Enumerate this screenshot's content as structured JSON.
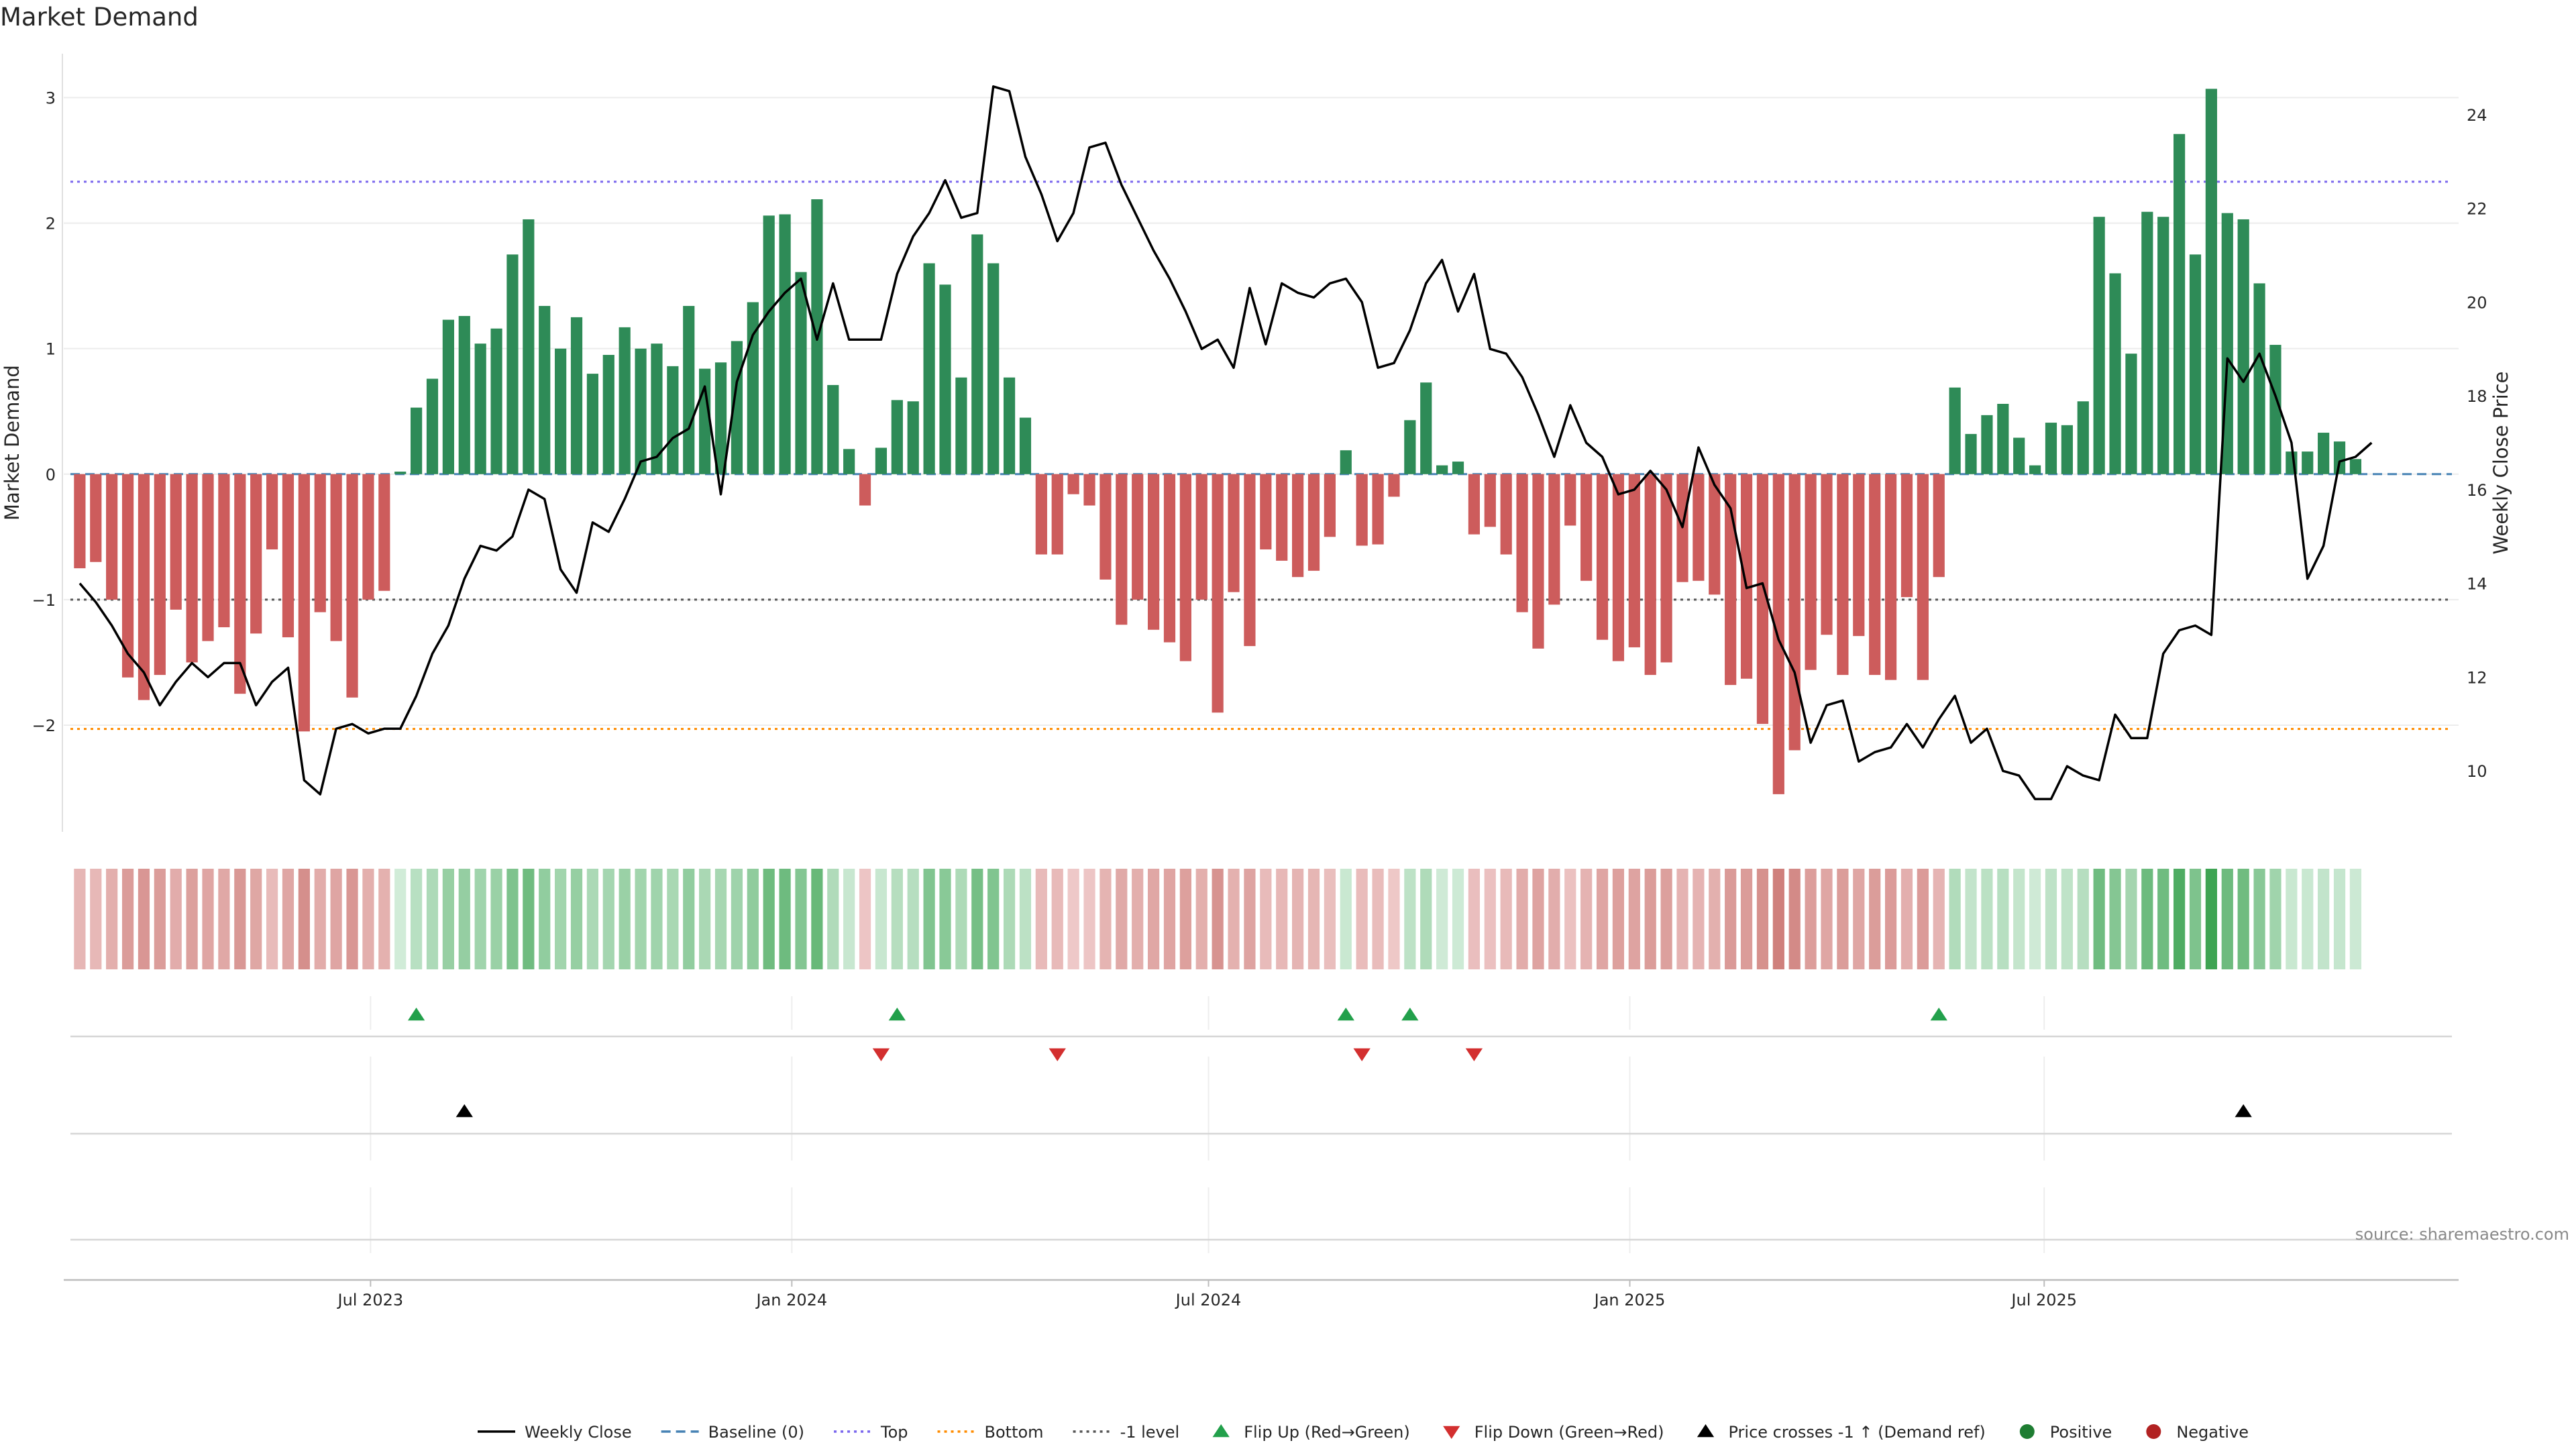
{
  "title": "Market Demand",
  "source": "source: sharemaestro.com",
  "chart_data": {
    "type": "bar",
    "title": "Market Demand",
    "ylabel": "Market Demand",
    "y2label": "Weekly Close Price",
    "ylim": [
      -2.85,
      3.35
    ],
    "y2lim": [
      8.7,
      25.3
    ],
    "y_ticks": [
      -2,
      -1,
      0,
      1,
      2,
      3
    ],
    "y_tick_labels": [
      "−2",
      "−1",
      "0",
      "1",
      "2",
      "3"
    ],
    "y2_ticks": [
      10,
      12,
      14,
      16,
      18,
      20,
      22,
      24
    ],
    "x_ticks": [
      {
        "date": "2023-07-01",
        "label": "Jul 2023"
      },
      {
        "date": "2024-01-01",
        "label": "Jan 2024"
      },
      {
        "date": "2024-07-01",
        "label": "Jul 2024"
      },
      {
        "date": "2025-01-01",
        "label": "Jan 2025"
      },
      {
        "date": "2025-07-01",
        "label": "Jul 2025"
      }
    ],
    "x_range": [
      "2023-02-17",
      "2025-12-29"
    ],
    "first_week": "2023-02-24",
    "week_step_days": 7,
    "reference_lines": {
      "top": 2.33,
      "bottom": -2.03,
      "minus_one_level": -1.0,
      "baseline": 0
    },
    "demand": [
      -0.75,
      -0.7,
      -1.0,
      -1.62,
      -1.8,
      -1.6,
      -1.08,
      -1.5,
      -1.33,
      -1.22,
      -1.75,
      -1.27,
      -0.6,
      -1.3,
      -2.05,
      -1.1,
      -1.33,
      -1.78,
      -1.0,
      -0.93,
      0.02,
      0.53,
      0.76,
      1.23,
      1.26,
      1.04,
      1.16,
      1.75,
      2.03,
      1.34,
      1.0,
      1.25,
      0.8,
      0.95,
      1.17,
      1.0,
      1.04,
      0.86,
      1.34,
      0.84,
      0.89,
      1.06,
      1.37,
      2.06,
      2.07,
      1.61,
      2.19,
      0.71,
      0.2,
      -0.25,
      0.21,
      0.59,
      0.58,
      1.68,
      1.51,
      0.77,
      1.91,
      1.68,
      0.77,
      0.45,
      -0.64,
      -0.64,
      -0.16,
      -0.25,
      -0.84,
      -1.2,
      -1.0,
      -1.24,
      -1.34,
      -1.49,
      -1.0,
      -1.9,
      -0.94,
      -1.37,
      -0.6,
      -0.69,
      -0.82,
      -0.77,
      -0.5,
      0.19,
      -0.57,
      -0.56,
      -0.18,
      0.43,
      0.73,
      0.07,
      0.1,
      -0.48,
      -0.42,
      -0.64,
      -1.1,
      -1.39,
      -1.04,
      -0.41,
      -0.85,
      -1.32,
      -1.49,
      -1.38,
      -1.6,
      -1.5,
      -0.86,
      -0.85,
      -0.96,
      -1.68,
      -1.63,
      -1.99,
      -2.55,
      -2.2,
      -1.56,
      -1.28,
      -1.6,
      -1.29,
      -1.6,
      -1.64,
      -0.98,
      -1.64,
      -0.82,
      0.69,
      0.32,
      0.47,
      0.56,
      0.29,
      0.07,
      0.41,
      0.39,
      0.58,
      2.05,
      1.6,
      0.96,
      2.09,
      2.05,
      2.71,
      1.75,
      3.07,
      2.08,
      2.03,
      1.52,
      1.03,
      0.18,
      0.18,
      0.33,
      0.26,
      0.12
    ],
    "weekly_close": [
      14.0,
      13.6,
      13.1,
      12.5,
      12.1,
      11.4,
      11.9,
      12.3,
      12.0,
      12.3,
      12.3,
      11.4,
      11.9,
      12.2,
      9.8,
      9.5,
      10.9,
      11.0,
      10.8,
      10.9,
      10.9,
      11.6,
      12.5,
      13.1,
      14.1,
      14.8,
      14.7,
      15.0,
      16.0,
      15.8,
      14.3,
      13.8,
      15.3,
      15.1,
      15.8,
      16.6,
      16.7,
      17.1,
      17.3,
      18.2,
      15.9,
      18.3,
      19.3,
      19.8,
      20.2,
      20.5,
      19.2,
      20.4,
      19.2,
      19.2,
      19.2,
      20.6,
      21.4,
      21.9,
      22.6,
      21.8,
      21.9,
      24.6,
      24.5,
      23.1,
      22.3,
      21.3,
      21.9,
      23.3,
      23.4,
      22.5,
      21.8,
      21.1,
      20.5,
      19.8,
      19.0,
      19.2,
      18.6,
      20.3,
      19.1,
      20.4,
      20.2,
      20.1,
      20.4,
      20.5,
      20.0,
      18.6,
      18.7,
      19.4,
      20.4,
      20.9,
      19.8,
      20.6,
      19.0,
      18.9,
      18.4,
      17.6,
      16.7,
      17.8,
      17.0,
      16.7,
      15.9,
      16.0,
      16.4,
      16.0,
      15.2,
      16.9,
      16.1,
      15.6,
      13.9,
      14.0,
      12.8,
      12.1,
      10.6,
      11.4,
      11.5,
      10.2,
      10.4,
      10.5,
      11.0,
      10.5,
      11.1,
      11.6,
      10.6,
      10.9,
      10.0,
      9.9,
      9.4,
      9.4,
      10.1,
      9.9,
      9.8,
      11.2,
      10.7,
      10.7,
      12.5,
      13.0,
      13.1,
      12.9,
      18.8,
      18.3,
      18.9,
      18.0,
      17.0,
      14.1,
      14.8,
      16.6,
      16.7,
      17.0
    ],
    "flip_up_weeks": [
      21,
      51,
      79,
      83,
      116
    ],
    "flip_down_weeks": [
      50,
      61,
      80,
      87
    ],
    "price_cross_weeks": [
      24,
      135
    ],
    "colors": {
      "positive_bar": "#2e8b57",
      "negative_bar": "#cd5c5c",
      "price_line": "#000000",
      "baseline": "#4682b4",
      "top_line": "#7b68ee",
      "bottom_line": "#ff8c00",
      "minus_one_line": "#555555",
      "flip_up": "#22a04b",
      "flip_down": "#d32f2f",
      "price_cross": "#000000",
      "positive_dot": "#1e7d32",
      "negative_dot": "#b22222"
    },
    "legend": [
      {
        "label": "Weekly Close",
        "kind": "solid",
        "color": "#000000"
      },
      {
        "label": "Baseline (0)",
        "kind": "dashed",
        "color": "#4682b4"
      },
      {
        "label": "Top",
        "kind": "dotted",
        "color": "#7b68ee"
      },
      {
        "label": "Bottom",
        "kind": "dotted",
        "color": "#ff8c00"
      },
      {
        "label": "-1 level",
        "kind": "dotted",
        "color": "#555555"
      },
      {
        "label": "Flip Up (Red→Green)",
        "kind": "tri-up",
        "color": "#22a04b"
      },
      {
        "label": "Flip Down (Green→Red)",
        "kind": "tri-down",
        "color": "#d32f2f"
      },
      {
        "label": "Price crosses -1 ↑ (Demand ref)",
        "kind": "tri-up",
        "color": "#000000"
      },
      {
        "label": "Positive",
        "kind": "dot",
        "color": "#1e7d32"
      },
      {
        "label": "Negative",
        "kind": "dot",
        "color": "#b22222"
      }
    ],
    "legend_position": "bottom-center",
    "grid": true
  }
}
